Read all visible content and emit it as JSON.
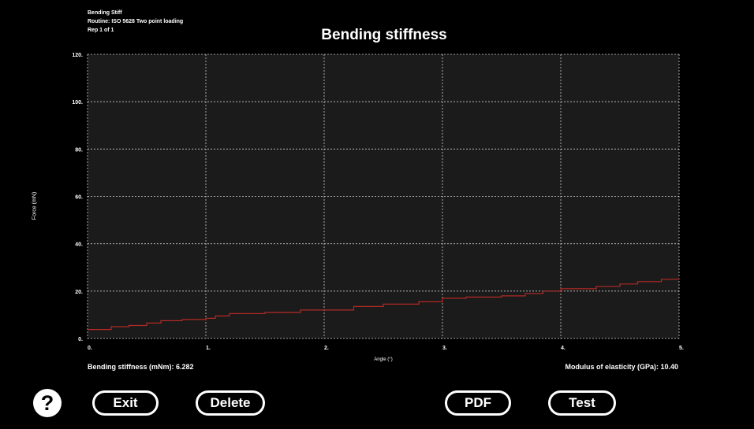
{
  "header": {
    "meta_line1": "Bending Stiff",
    "meta_line2": "Routine: ISO 5628 Two point loading",
    "meta_line3": "Rep 1 of 1",
    "title": "Bending stiffness"
  },
  "chart_data": {
    "type": "line",
    "title": "Bending stiffness",
    "xlabel": "Angle (°)",
    "ylabel": "Force (mN)",
    "xlim": [
      0,
      5
    ],
    "ylim": [
      0,
      120
    ],
    "x_ticks": [
      "0.",
      "1.",
      "2.",
      "3.",
      "4.",
      "5."
    ],
    "y_ticks": [
      "0.",
      "20.",
      "40.",
      "60.",
      "80.",
      "100.",
      "120."
    ],
    "grid": true,
    "series": [
      {
        "color": "#b22a24",
        "x": [
          0,
          0.15,
          0.2,
          0.35,
          0.5,
          0.62,
          0.8,
          1.0,
          1.08,
          1.2,
          1.5,
          1.8,
          2.0,
          2.25,
          2.5,
          2.8,
          3.0,
          3.2,
          3.5,
          3.7,
          3.85,
          4.0,
          4.1,
          4.3,
          4.5,
          4.65,
          4.85,
          5.0
        ],
        "y": [
          3.8,
          3.8,
          5.0,
          5.5,
          6.5,
          7.5,
          8.0,
          8.5,
          9.5,
          10.5,
          11.0,
          12.0,
          12.0,
          13.5,
          14.5,
          15.5,
          17.0,
          17.5,
          18.0,
          19.0,
          20.0,
          21.0,
          21.0,
          22.0,
          23.0,
          24.0,
          25.0,
          25.5
        ]
      }
    ]
  },
  "stats": {
    "bending": "Bending stiffness (mNm): 6.282",
    "modulus": "Modulus of elasticity (GPa): 10.40"
  },
  "buttons": {
    "help": "?",
    "exit": "Exit",
    "delete": "Delete",
    "pdf": "PDF",
    "test": "Test"
  }
}
